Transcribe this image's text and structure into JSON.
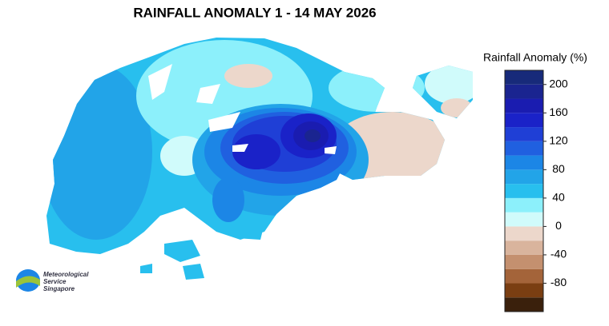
{
  "map": {
    "title": "RAINFALL ANOMALY 1 - 14 MAY 2026",
    "logo": [
      "Meteorological",
      "Service",
      "Singapore"
    ],
    "colorbar": {
      "label": "Rainfall Anomaly (%)",
      "levels": [
        -120,
        -100,
        -80,
        -60,
        -40,
        -20,
        0,
        20,
        40,
        60,
        80,
        100,
        120,
        140,
        160,
        180,
        200,
        220
      ],
      "colors": [
        "#3a200c",
        "#7a3e12",
        "#a4643a",
        "#c4906f",
        "#d9b49d",
        "#ecd7cb",
        "#d0fbfb",
        "#8cf0fb",
        "#28bfee",
        "#22a4e8",
        "#1c86e6",
        "#2060e0",
        "#1f3fd6",
        "#1a22c8",
        "#1a1cb0",
        "#1a2490",
        "#172a7a"
      ],
      "ticks": [
        -80,
        -40,
        0,
        40,
        80,
        120,
        160,
        200
      ]
    }
  }
}
